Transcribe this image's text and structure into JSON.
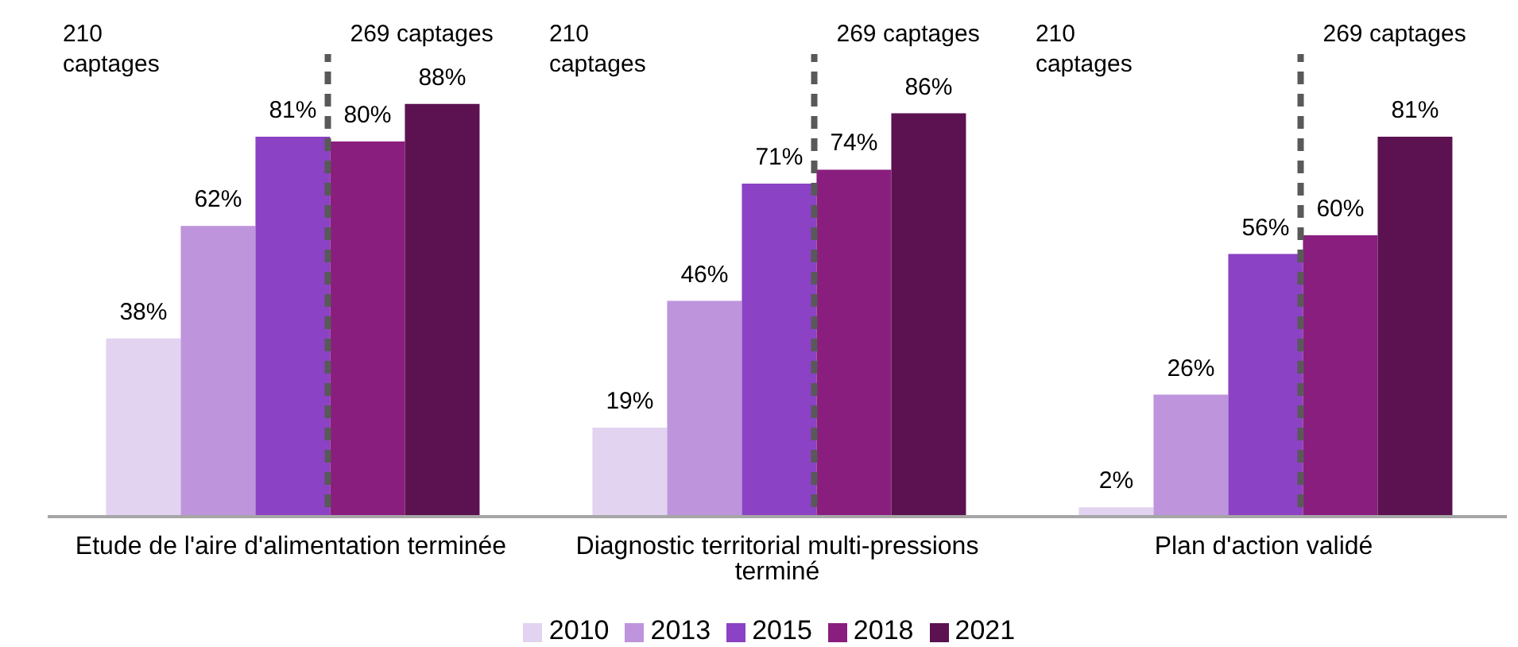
{
  "chart_data": {
    "type": "bar",
    "categories": [
      "Etude de l'aire d'alimentation terminée",
      "Diagnostic territorial multi-pressions terminé",
      "Plan d'action validé"
    ],
    "series": [
      {
        "name": "2010",
        "color": "#e2d3f0",
        "values": [
          38,
          19,
          2
        ],
        "value_labels": [
          "38%",
          "19%",
          "2%"
        ]
      },
      {
        "name": "2013",
        "color": "#be94dc",
        "values": [
          62,
          46,
          26
        ],
        "value_labels": [
          "62%",
          "46%",
          "26%"
        ]
      },
      {
        "name": "2015",
        "color": "#8b42c4",
        "values": [
          81,
          71,
          56
        ],
        "value_labels": [
          "81%",
          "71%",
          "56%"
        ]
      },
      {
        "name": "2018",
        "color": "#8a1e7e",
        "values": [
          80,
          74,
          60
        ],
        "value_labels": [
          "80%",
          "74%",
          "60%"
        ]
      },
      {
        "name": "2021",
        "color": "#5c1250",
        "values": [
          88,
          86,
          81
        ],
        "value_labels": [
          "88%",
          "86%",
          "81%"
        ]
      }
    ],
    "tick_labels": "x",
    "grid": false,
    "legend": "bottom",
    "ref_lines": [
      {
        "axis": "x",
        "value": "Etude de l'aire d'alimentation terminée",
        "label": "269 captages",
        "color": "#595959",
        "line_style": "dashed"
      },
      {
        "axis": "x",
        "value": "Diagnostic territorial multi-pressions terminé",
        "label": "269 captages",
        "color": "#595959",
        "line_style": "dashed"
      },
      {
        "axis": "x",
        "value": "Plan d'action validé",
        "label": "269 captages",
        "color": "#595959",
        "line_style": "dashed"
      }
    ],
    "annotations": [
      "210 captages",
      "210 captages",
      "210 captages"
    ]
  }
}
